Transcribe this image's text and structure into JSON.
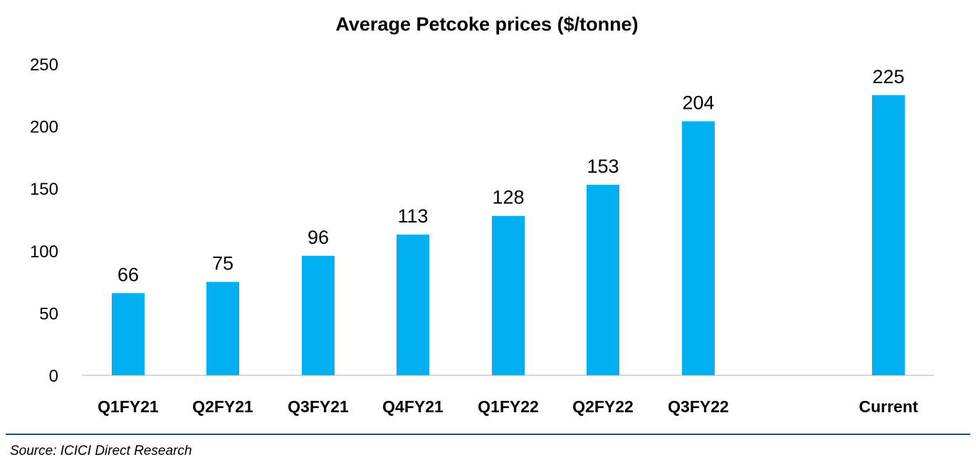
{
  "chart_data": {
    "type": "bar",
    "title": "Average Petcoke prices ($/tonne)",
    "categories": [
      "Q1FY21",
      "Q2FY21",
      "Q3FY21",
      "Q4FY21",
      "Q1FY22",
      "Q2FY22",
      "Q3FY22",
      "Current"
    ],
    "values": [
      66,
      75,
      96,
      113,
      128,
      153,
      204,
      225
    ],
    "data_labels": [
      "66",
      "75",
      "96",
      "113",
      "128",
      "153",
      "204",
      "225"
    ],
    "y_ticks": [
      "0",
      "50",
      "100",
      "150",
      "200",
      "250"
    ],
    "ylim": [
      0,
      250
    ],
    "grid": false,
    "legend": "none",
    "bar_color": "#00B0F0",
    "axis_color": "#D9D9D9"
  },
  "footer": {
    "source": "Source: ICICI Direct Research",
    "rule_color": "#1F4E79"
  }
}
